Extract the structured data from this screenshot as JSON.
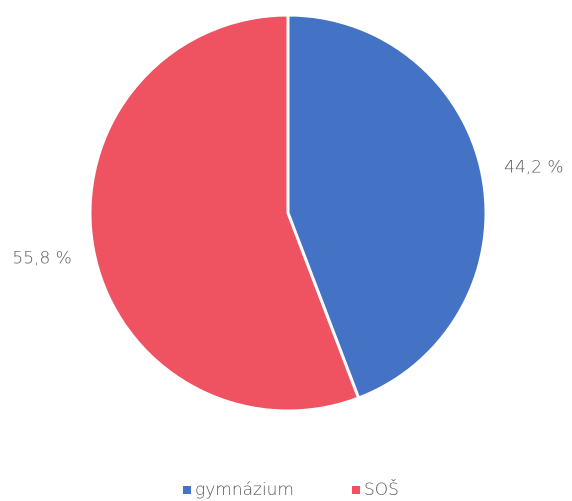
{
  "chart_data": {
    "type": "pie",
    "categories": [
      "gymnázium",
      "SOŠ"
    ],
    "values": [
      44.2,
      55.8
    ],
    "value_labels": [
      "44,2 %",
      "55,8 %"
    ],
    "colors": [
      "#4472c4",
      "#ef5261"
    ],
    "legend": "bottom"
  }
}
